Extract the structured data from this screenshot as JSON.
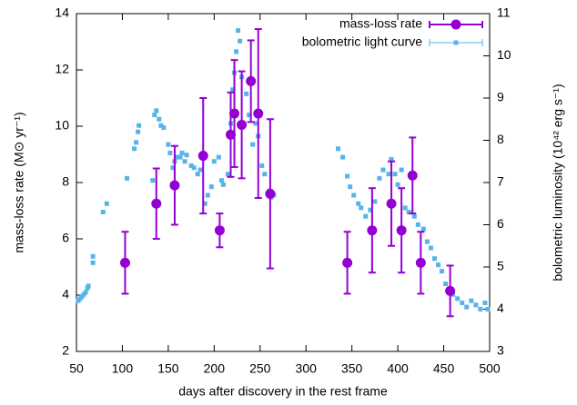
{
  "chart_data": {
    "type": "scatter",
    "xlabel": "days after discovery in the rest frame",
    "ylabel": "mass-loss rate (M⊙ yr⁻¹)",
    "y2label": "bolometric luminosity (10⁴² erg s⁻¹)",
    "xlim": [
      50,
      500
    ],
    "xticks": [
      50,
      100,
      150,
      200,
      250,
      300,
      350,
      400,
      450,
      500
    ],
    "ylim": [
      2,
      14
    ],
    "yticks": [
      2,
      4,
      6,
      8,
      10,
      12,
      14
    ],
    "y2lim": [
      3,
      11
    ],
    "y2ticks": [
      3,
      4,
      5,
      6,
      7,
      8,
      9,
      10,
      11
    ],
    "legend": "upper right",
    "series": [
      {
        "name": "mass-loss rate",
        "color": "#9400d3",
        "marker": "circle",
        "axis": "y",
        "x": [
          103,
          137,
          157,
          188,
          206,
          218,
          222,
          230,
          240,
          248,
          261,
          345,
          372,
          393,
          404,
          416,
          425,
          457
        ],
        "values": [
          5.15,
          7.25,
          7.9,
          8.95,
          6.3,
          9.7,
          10.45,
          10.05,
          11.6,
          10.45,
          7.6,
          5.15,
          6.3,
          7.25,
          6.3,
          8.25,
          5.15,
          4.15
        ],
        "errors": [
          1.1,
          1.25,
          1.4,
          2.05,
          0.6,
          1.5,
          1.9,
          1.9,
          1.45,
          3.0,
          2.65,
          1.1,
          1.5,
          1.5,
          1.5,
          1.35,
          1.1,
          0.9
        ]
      },
      {
        "name": "bolometric light curve",
        "color": "#56b4e9",
        "marker": "square",
        "axis": "y2",
        "x": [
          52,
          54,
          56,
          58,
          60,
          62,
          63,
          68,
          68,
          79,
          83,
          105,
          113,
          115,
          117,
          118,
          133,
          135,
          137,
          140,
          142,
          145,
          150,
          152,
          155,
          157,
          160,
          163,
          165,
          168,
          170,
          175,
          178,
          182,
          185,
          190,
          193,
          197,
          200,
          205,
          208,
          210,
          215,
          218,
          220,
          222,
          224,
          226,
          228,
          230,
          235,
          238,
          242,
          245,
          248,
          252,
          255,
          260,
          262,
          265,
          335,
          340,
          345,
          348,
          352,
          357,
          360,
          365,
          370,
          375,
          380,
          384,
          390,
          393,
          397,
          400,
          404,
          408,
          412,
          418,
          422,
          428,
          432,
          436,
          440,
          444,
          448,
          452,
          456,
          460,
          465,
          470,
          475,
          480,
          485,
          490,
          495,
          498
        ],
        "values": [
          4.2,
          4.25,
          4.3,
          4.35,
          4.4,
          4.5,
          4.55,
          5.1,
          5.25,
          6.3,
          6.5,
          7.1,
          7.8,
          7.95,
          8.2,
          8.35,
          7.05,
          8.6,
          8.7,
          8.5,
          8.35,
          8.3,
          7.9,
          7.7,
          7.35,
          7.5,
          7.6,
          7.6,
          7.7,
          7.5,
          7.65,
          7.4,
          7.35,
          7.2,
          7.3,
          6.5,
          6.7,
          6.9,
          7.5,
          7.6,
          7.05,
          6.95,
          7.2,
          8.4,
          9.2,
          9.6,
          10.1,
          10.6,
          10.35,
          9.5,
          9.1,
          8.6,
          7.9,
          8.4,
          8.1,
          7.4,
          7.2,
          6.8,
          6.65,
          6.7,
          7.8,
          7.6,
          7.15,
          6.9,
          6.7,
          6.5,
          6.4,
          6.2,
          6.35,
          6.55,
          7.1,
          7.3,
          7.2,
          7.55,
          7.2,
          6.95,
          7.3,
          6.4,
          6.3,
          6.2,
          6.0,
          5.9,
          5.6,
          5.45,
          5.2,
          5.05,
          4.9,
          4.6,
          4.4,
          4.35,
          4.25,
          4.15,
          4.05,
          4.2,
          4.1,
          4.0,
          4.15,
          4.0
        ]
      }
    ]
  }
}
